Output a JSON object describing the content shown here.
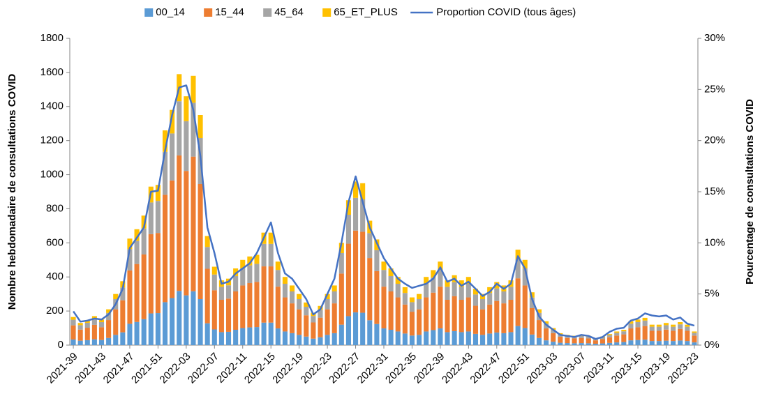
{
  "chart_data": {
    "type": "bar",
    "y_label": "Nombre hebdomadaire de consultations COVID",
    "y2_label": "Pourcentage de consultations COVID",
    "categories": [
      "2021-39",
      null,
      null,
      null,
      "2021-43",
      null,
      null,
      null,
      "2021-47",
      null,
      null,
      null,
      "2021-51",
      null,
      null,
      null,
      "2022-03",
      null,
      null,
      null,
      "2022-07",
      null,
      null,
      null,
      "2022-11",
      null,
      null,
      null,
      "2022-15",
      null,
      null,
      null,
      "2022-19",
      null,
      null,
      null,
      "2022-23",
      null,
      null,
      null,
      "2022-27",
      null,
      null,
      null,
      "2022-31",
      null,
      null,
      null,
      "2022-35",
      null,
      null,
      null,
      "2022-39",
      null,
      null,
      null,
      "2022-43",
      null,
      null,
      null,
      "2022-47",
      null,
      null,
      null,
      "2022-51",
      null,
      null,
      null,
      "2023-03",
      null,
      null,
      null,
      "2023-07",
      null,
      null,
      null,
      "2023-11",
      null,
      null,
      null,
      "2023-15",
      null,
      null,
      null,
      "2023-19",
      null,
      null,
      null,
      "2023-23"
    ],
    "ylim": [
      0,
      1800
    ],
    "yticks": [
      0,
      200,
      400,
      600,
      800,
      1000,
      1200,
      1400,
      1600,
      1800
    ],
    "y2lim": [
      0,
      30
    ],
    "y2ticks": [
      {
        "value": 0,
        "label": "0%"
      },
      {
        "value": 5,
        "label": "5%"
      },
      {
        "value": 10,
        "label": "10%"
      },
      {
        "value": 15,
        "label": "15%"
      },
      {
        "value": 20,
        "label": "20%"
      },
      {
        "value": 25,
        "label": "25%"
      },
      {
        "value": 30,
        "label": "30%"
      }
    ],
    "legend": "top",
    "series": [
      {
        "name": "00_14",
        "type": "bar",
        "color": "#5b9bd5",
        "values": [
          33,
          26,
          29,
          34,
          30,
          42,
          60,
          75,
          125,
          136,
          152,
          186,
          188,
          252,
          276,
          318,
          292,
          316,
          270,
          128,
          92,
          76,
          78,
          90,
          100,
          104,
          106,
          132,
          132,
          98,
          80,
          70,
          60,
          50,
          38,
          46,
          60,
          70,
          120,
          170,
          192,
          190,
          146,
          124,
          98,
          90,
          80,
          68,
          56,
          60,
          80,
          88,
          98,
          76,
          82,
          76,
          80,
          66,
          60,
          68,
          74,
          70,
          76,
          112,
          100,
          62,
          42,
          28,
          20,
          14,
          12,
          11,
          12,
          11,
          8,
          10,
          13,
          16,
          18,
          28,
          30,
          32,
          24,
          24,
          26,
          24,
          27,
          24,
          16
        ]
      },
      {
        "name": "15_44",
        "type": "bar",
        "color": "#ed7d31",
        "values": [
          83,
          65,
          73,
          85,
          75,
          105,
          150,
          188,
          313,
          340,
          380,
          465,
          470,
          630,
          690,
          795,
          730,
          790,
          675,
          320,
          230,
          190,
          195,
          225,
          250,
          260,
          265,
          330,
          330,
          245,
          200,
          175,
          150,
          125,
          95,
          115,
          150,
          175,
          300,
          425,
          480,
          475,
          365,
          310,
          245,
          225,
          200,
          170,
          140,
          150,
          200,
          220,
          245,
          190,
          205,
          190,
          200,
          165,
          150,
          170,
          185,
          175,
          190,
          280,
          250,
          155,
          105,
          70,
          50,
          35,
          30,
          28,
          30,
          28,
          20,
          25,
          33,
          40,
          45,
          70,
          75,
          80,
          60,
          60,
          65,
          60,
          68,
          60,
          40
        ]
      },
      {
        "name": "45_64",
        "type": "bar",
        "color": "#a5a5a5",
        "values": [
          33,
          26,
          29,
          34,
          30,
          42,
          60,
          75,
          125,
          136,
          152,
          186,
          188,
          252,
          276,
          318,
          292,
          316,
          270,
          128,
          92,
          76,
          78,
          90,
          100,
          104,
          106,
          132,
          132,
          98,
          80,
          70,
          60,
          50,
          38,
          46,
          60,
          70,
          120,
          170,
          192,
          190,
          146,
          124,
          98,
          90,
          80,
          68,
          56,
          60,
          80,
          88,
          98,
          76,
          82,
          76,
          80,
          66,
          60,
          68,
          74,
          70,
          76,
          112,
          100,
          62,
          42,
          28,
          20,
          14,
          12,
          11,
          12,
          11,
          8,
          10,
          13,
          16,
          18,
          28,
          30,
          32,
          24,
          24,
          26,
          24,
          27,
          24,
          16
        ]
      },
      {
        "name": "65_ET_PLUS",
        "type": "bar",
        "color": "#ffc000",
        "values": [
          16,
          13,
          14,
          17,
          15,
          21,
          30,
          37,
          62,
          68,
          76,
          93,
          94,
          126,
          138,
          159,
          146,
          158,
          135,
          64,
          46,
          38,
          39,
          45,
          50,
          52,
          53,
          66,
          66,
          49,
          40,
          35,
          30,
          25,
          19,
          23,
          30,
          35,
          60,
          85,
          96,
          95,
          73,
          62,
          49,
          45,
          40,
          34,
          28,
          30,
          40,
          44,
          49,
          38,
          41,
          38,
          40,
          33,
          30,
          34,
          37,
          35,
          38,
          56,
          50,
          31,
          21,
          14,
          10,
          7,
          6,
          5,
          6,
          5,
          4,
          5,
          6,
          8,
          9,
          14,
          15,
          16,
          12,
          12,
          13,
          12,
          13,
          12,
          8
        ]
      },
      {
        "name": "Proportion COVID (tous âges)",
        "type": "line",
        "axis": "y2",
        "color": "#4472c4",
        "values": [
          3.3,
          2.3,
          2.4,
          2.6,
          2.5,
          3.0,
          4.0,
          5.5,
          9.5,
          10.5,
          11.5,
          15.0,
          15.1,
          19.0,
          22.5,
          25.2,
          25.4,
          23.0,
          18.5,
          11.5,
          9.0,
          6.0,
          6.2,
          7.0,
          7.5,
          8.0,
          9.0,
          10.5,
          12.0,
          9.0,
          7.0,
          6.5,
          5.5,
          4.5,
          3.0,
          3.5,
          5.0,
          6.5,
          10.0,
          14.0,
          16.5,
          14.0,
          11.5,
          10.0,
          8.5,
          7.5,
          6.5,
          6.0,
          5.6,
          5.8,
          6.0,
          6.5,
          7.6,
          6.2,
          6.5,
          5.8,
          6.2,
          5.5,
          4.8,
          5.2,
          6.0,
          5.5,
          6.0,
          8.7,
          7.5,
          4.5,
          2.8,
          2.0,
          1.5,
          1.0,
          0.9,
          0.8,
          1.0,
          0.9,
          0.6,
          0.8,
          1.3,
          1.6,
          1.7,
          2.4,
          2.6,
          3.1,
          2.9,
          2.8,
          2.9,
          2.5,
          2.7,
          2.1,
          1.9
        ]
      }
    ]
  }
}
